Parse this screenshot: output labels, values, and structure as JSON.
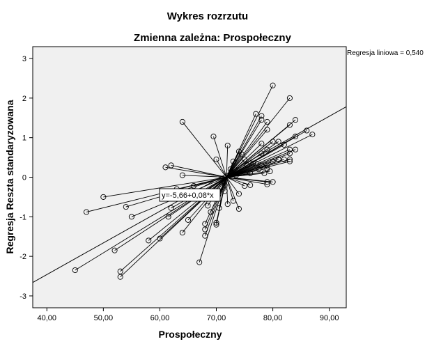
{
  "chart_data": {
    "type": "scatter",
    "title": "Wykres rozrzutu",
    "subtitle": "Zmienna zależna: Prospołeczny",
    "xlabel": "Prospołeczny",
    "ylabel": "Regresja Reszta standaryzowana",
    "xlim": [
      37.5,
      93.0
    ],
    "ylim": [
      -3.3,
      3.3
    ],
    "x_ticks": [
      40,
      50,
      60,
      70,
      80,
      90
    ],
    "x_tick_labels": [
      "40,00",
      "50,00",
      "60,00",
      "70,00",
      "80,00",
      "90,00"
    ],
    "y_ticks": [
      -3,
      -2,
      -1,
      0,
      1,
      2,
      3
    ],
    "y_tick_labels": [
      "-3",
      "-2",
      "-1",
      "0",
      "1",
      "2",
      "3"
    ],
    "grid": false,
    "plot_background": "#f0f0f0",
    "fit_line": {
      "intercept": -5.66,
      "slope": 0.08,
      "equation_label": "y=-5,66+0,08*x",
      "legend_label": "Regresja liniowa = 0,540"
    },
    "spike_center": [
      71.8,
      0.0
    ],
    "points": [
      [
        45,
        -2.35
      ],
      [
        47,
        -0.88
      ],
      [
        50,
        -0.5
      ],
      [
        52,
        -1.85
      ],
      [
        53,
        -2.38
      ],
      [
        53,
        -2.52
      ],
      [
        54,
        -0.75
      ],
      [
        55,
        -1.0
      ],
      [
        58,
        -1.6
      ],
      [
        60,
        -1.55
      ],
      [
        61,
        0.25
      ],
      [
        61.5,
        -1.0
      ],
      [
        62,
        0.3
      ],
      [
        62,
        -0.78
      ],
      [
        63,
        -0.3
      ],
      [
        64,
        1.4
      ],
      [
        64,
        0.05
      ],
      [
        64,
        -1.4
      ],
      [
        65,
        -1.08
      ],
      [
        66,
        -0.22
      ],
      [
        67,
        -2.15
      ],
      [
        68,
        -1.18
      ],
      [
        68,
        -1.32
      ],
      [
        68,
        -1.48
      ],
      [
        68.5,
        -0.72
      ],
      [
        69,
        -0.88
      ],
      [
        69.5,
        1.03
      ],
      [
        70,
        -1.15
      ],
      [
        70,
        -1.2
      ],
      [
        70,
        0.45
      ],
      [
        70.5,
        -0.78
      ],
      [
        71.5,
        -0.2
      ],
      [
        71.5,
        -0.35
      ],
      [
        72,
        0.8
      ],
      [
        72,
        -0.68
      ],
      [
        72.5,
        0.2
      ],
      [
        73,
        -0.6
      ],
      [
        73,
        0.4
      ],
      [
        73.5,
        0.05
      ],
      [
        74,
        0.65
      ],
      [
        74,
        -0.42
      ],
      [
        74,
        -0.8
      ],
      [
        74.5,
        0.58
      ],
      [
        75,
        -0.22
      ],
      [
        75,
        0.45
      ],
      [
        75.5,
        0.3
      ],
      [
        76,
        -0.2
      ],
      [
        76,
        0.1
      ],
      [
        76.5,
        0.35
      ],
      [
        77,
        1.6
      ],
      [
        77,
        0.35
      ],
      [
        77.5,
        0.2
      ],
      [
        78,
        1.55
      ],
      [
        78,
        1.45
      ],
      [
        78,
        0.85
      ],
      [
        78,
        0.6
      ],
      [
        78,
        0.3
      ],
      [
        78.5,
        0.1
      ],
      [
        79,
        1.4
      ],
      [
        79,
        1.2
      ],
      [
        79,
        0.7
      ],
      [
        79,
        0.3
      ],
      [
        79,
        0.22
      ],
      [
        79,
        -0.12
      ],
      [
        79,
        -0.18
      ],
      [
        79.5,
        0.15
      ],
      [
        80,
        2.32
      ],
      [
        80,
        0.9
      ],
      [
        80,
        0.4
      ],
      [
        80,
        -0.12
      ],
      [
        81,
        0.9
      ],
      [
        81,
        0.45
      ],
      [
        82,
        0.82
      ],
      [
        82,
        0.45
      ],
      [
        83,
        2.0
      ],
      [
        83,
        1.32
      ],
      [
        83,
        0.7
      ],
      [
        83,
        0.6
      ],
      [
        83,
        0.45
      ],
      [
        83,
        0.4
      ],
      [
        84,
        1.45
      ],
      [
        84,
        1.03
      ],
      [
        84,
        0.7
      ],
      [
        86,
        1.18
      ],
      [
        87,
        1.08
      ]
    ]
  }
}
